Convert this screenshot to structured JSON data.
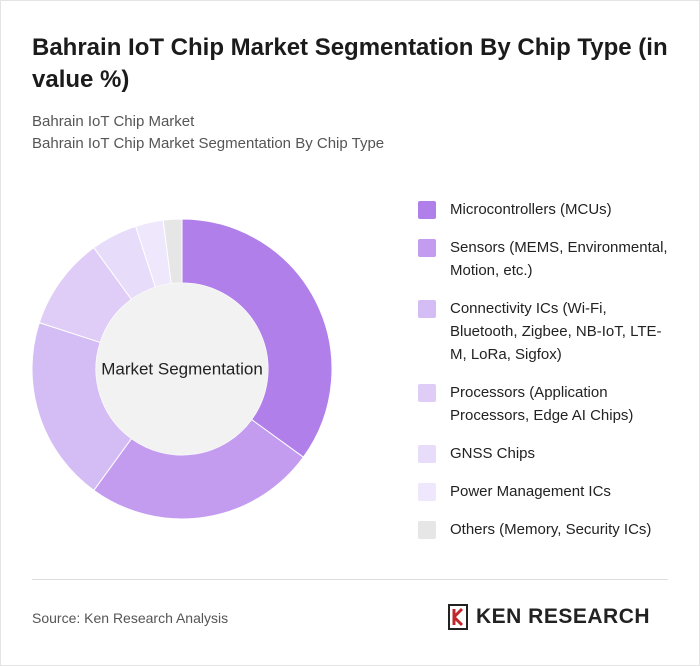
{
  "chart_data": {
    "type": "donut",
    "title": "Bahrain IoT Chip Market Segmentation By Chip Type (in value %)",
    "subtitle": [
      "Bahrain IoT Chip Market",
      "Bahrain IoT Chip Market Segmentation By Chip Type"
    ],
    "center_label": "Market Segmentation",
    "categories": [
      "Microcontrollers (MCUs)",
      "Sensors (MEMS, Environmental, Motion, etc.)",
      "Connectivity ICs (Wi-Fi, Bluetooth, Zigbee, NB-IoT, LTE-M, LoRa, Sigfox)",
      "Processors (Application Processors, Edge AI Chips)",
      "GNSS Chips",
      "Power Management ICs",
      "Others (Memory, Security ICs)"
    ],
    "values": [
      35,
      25,
      20,
      10,
      5,
      3,
      2
    ],
    "colors": [
      "#b07fe9",
      "#c39cf0",
      "#d4bcf5",
      "#dfcdf8",
      "#e7dcfa",
      "#efe7fc",
      "#e6e6e6"
    ],
    "source": "Source: Ken Research Analysis",
    "logo": "KEN RESEARCH"
  }
}
